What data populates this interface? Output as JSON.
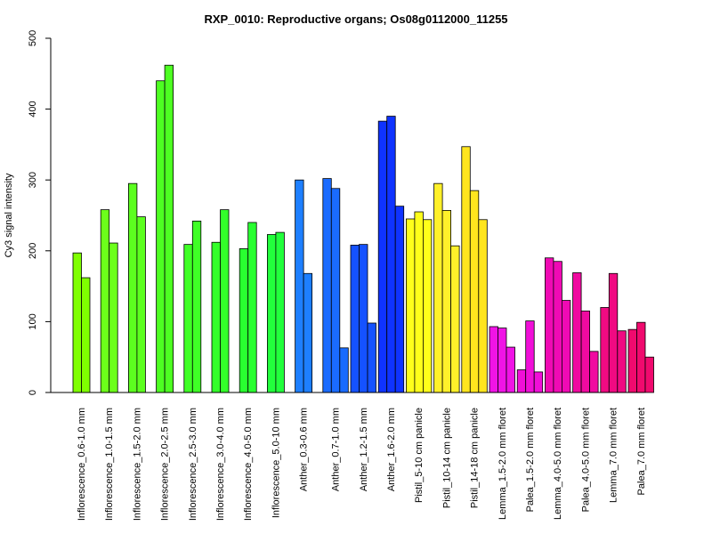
{
  "chart_data": {
    "type": "bar",
    "title": "RXP_0010: Reproductive organs; Os08g0112000_11255",
    "ylabel": "Cy3 signal intensity",
    "xlabel": "",
    "ylim": [
      0,
      500
    ],
    "yticks": [
      0,
      100,
      200,
      300,
      400,
      500
    ],
    "grid": false,
    "groups": [
      {
        "label": "Inflorescence_0.6-1.0 mm",
        "color": "#7FFF00",
        "values": [
          197,
          162
        ]
      },
      {
        "label": "Inflorescence_1.0-1.5 mm",
        "color": "#6CFF1A",
        "values": [
          258,
          211
        ]
      },
      {
        "label": "Inflorescence_1.5-2.0 mm",
        "color": "#5CFF1F",
        "values": [
          295,
          248
        ]
      },
      {
        "label": "Inflorescence_2.0-2.5 mm",
        "color": "#4DFF22",
        "values": [
          440,
          462
        ]
      },
      {
        "label": "Inflorescence_2.5-3.0 mm",
        "color": "#3FFF26",
        "values": [
          209,
          242
        ]
      },
      {
        "label": "Inflorescence_3.0-4.0 mm",
        "color": "#33FF2A",
        "values": [
          212,
          258
        ]
      },
      {
        "label": "Inflorescence_4.0-5.0 mm",
        "color": "#29FF30",
        "values": [
          203,
          240
        ]
      },
      {
        "label": "Inflorescence_5.0-10 mm",
        "color": "#22FF3C",
        "values": [
          223,
          226
        ]
      },
      {
        "label": "Anther_0.3-0.6 mm",
        "color": "#1E7FFF",
        "values": [
          300,
          168
        ]
      },
      {
        "label": "Anther_0.7-1.0 mm",
        "color": "#1A6BFF",
        "values": [
          302,
          288,
          63
        ]
      },
      {
        "label": "Anther_1.2-1.5 mm",
        "color": "#1552FF",
        "values": [
          208,
          209,
          98
        ]
      },
      {
        "label": "Anther_1.6-2.0 mm",
        "color": "#0F33FF",
        "values": [
          383,
          390,
          263
        ]
      },
      {
        "label": "Pistil_5-10 cm panicle",
        "color": "#FFFF1A",
        "values": [
          245,
          255,
          244
        ]
      },
      {
        "label": "Pistil_10-14 cm panicle",
        "color": "#FFF02A",
        "values": [
          295,
          257,
          207
        ]
      },
      {
        "label": "Pistil_14-18 cm panicle",
        "color": "#FFE51E",
        "values": [
          347,
          285,
          244
        ]
      },
      {
        "label": "Lemma_1.5-2.0 mm floret",
        "color": "#F014E6",
        "values": [
          93,
          91,
          64
        ]
      },
      {
        "label": "Palea_1.5-2.0 mm floret",
        "color": "#F00FD8",
        "values": [
          32,
          101,
          29
        ]
      },
      {
        "label": "Lemma_4.0-5.0 mm floret",
        "color": "#F00AB4",
        "values": [
          190,
          185,
          130
        ]
      },
      {
        "label": "Palea_4.0-5.0 mm floret",
        "color": "#F00AA0",
        "values": [
          169,
          115,
          58
        ]
      },
      {
        "label": "Lemma_7.0 mm floret",
        "color": "#F00A82",
        "values": [
          120,
          168,
          87
        ]
      },
      {
        "label": "Palea_7.0 mm floret",
        "color": "#F00A6E",
        "values": [
          89,
          99,
          50
        ]
      }
    ]
  }
}
